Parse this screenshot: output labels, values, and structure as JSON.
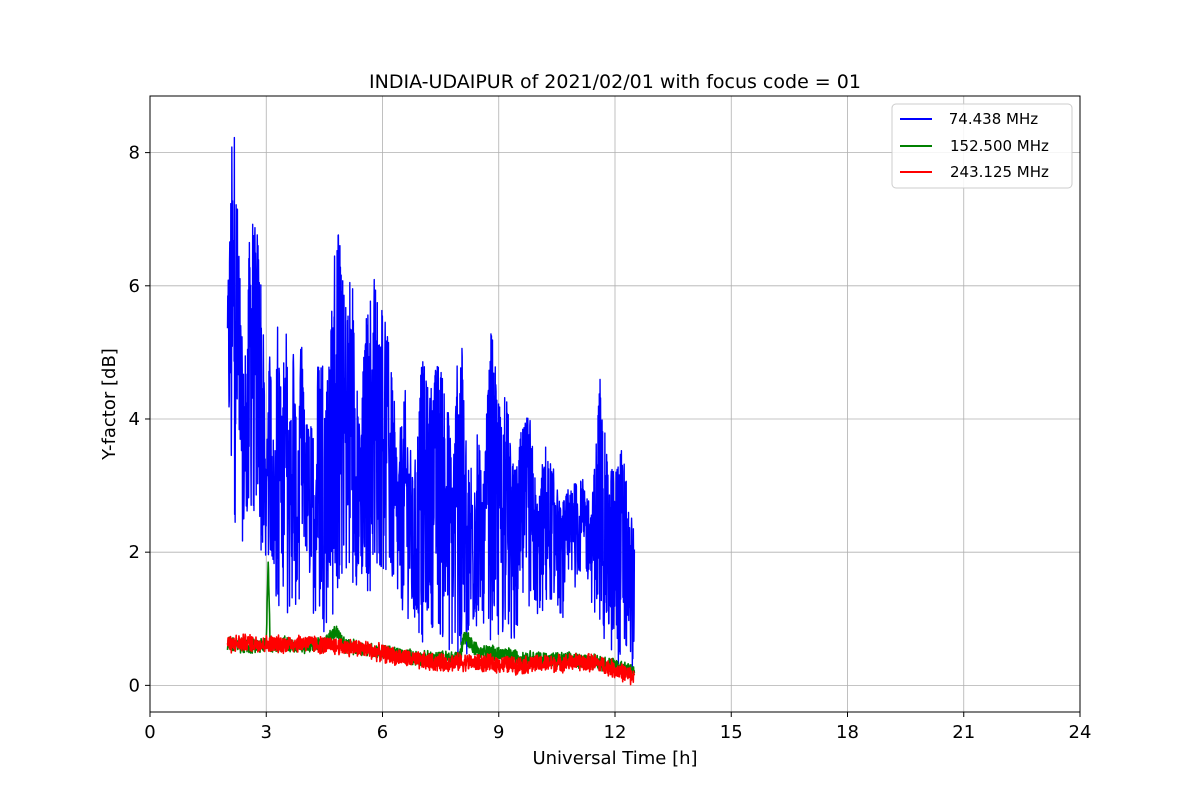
{
  "chart_data": {
    "type": "line",
    "title": "INDIA-UDAIPUR of 2021/02/01 with focus code = 01",
    "xlabel": "Universal Time [h]",
    "ylabel": "Y-factor [dB]",
    "xlim": [
      0,
      24
    ],
    "ylim": [
      -0.4,
      8.85
    ],
    "xticks": [
      0,
      3,
      6,
      9,
      12,
      15,
      18,
      21,
      24
    ],
    "yticks": [
      0,
      2,
      4,
      6,
      8
    ],
    "grid": true,
    "legend_position": "top-right",
    "series": [
      {
        "name": " 74.438 MHz",
        "color": "#0000ff",
        "x": [
          2.0,
          2.1,
          2.2,
          2.3,
          2.4,
          2.5,
          2.6,
          2.7,
          2.8,
          2.9,
          3.0,
          3.1,
          3.2,
          3.3,
          3.4,
          3.5,
          3.6,
          3.7,
          3.8,
          3.9,
          4.0,
          4.2,
          4.4,
          4.6,
          4.8,
          5.0,
          5.2,
          5.4,
          5.6,
          5.8,
          6.0,
          6.2,
          6.4,
          6.6,
          6.8,
          7.0,
          7.2,
          7.4,
          7.6,
          7.8,
          8.0,
          8.2,
          8.4,
          8.6,
          8.8,
          9.0,
          9.2,
          9.4,
          9.6,
          9.8,
          10.0,
          10.2,
          10.4,
          10.6,
          10.8,
          11.0,
          11.2,
          11.4,
          11.6,
          11.8,
          12.0,
          12.2,
          12.4,
          12.5
        ],
        "y": [
          5.9,
          8.2,
          8.4,
          6.5,
          4.8,
          5.4,
          7.5,
          6.9,
          7.0,
          6.0,
          3.2,
          5.4,
          3.5,
          5.7,
          4.2,
          5.7,
          4.0,
          5.6,
          3.2,
          5.4,
          4.1,
          3.9,
          5.5,
          4.6,
          7.4,
          5.9,
          6.4,
          4.0,
          5.8,
          6.2,
          5.8,
          5.0,
          3.6,
          4.5,
          3.0,
          5.0,
          4.5,
          4.9,
          4.8,
          3.7,
          5.8,
          3.1,
          4.3,
          3.0,
          5.5,
          4.2,
          4.4,
          3.2,
          3.9,
          4.1,
          2.8,
          3.7,
          3.3,
          2.7,
          3.0,
          3.1,
          3.1,
          2.7,
          4.7,
          3.4,
          3.3,
          3.7,
          2.3,
          3.1
        ],
        "y_min_envelope": [
          4.2,
          2.2,
          2.4,
          3.1,
          2.0,
          2.2,
          2.5,
          2.4,
          2.3,
          1.5,
          1.9,
          1.8,
          1.5,
          0.8,
          1.6,
          1.2,
          0.9,
          1.3,
          1.0,
          1.5,
          1.9,
          1.1,
          0.8,
          0.8,
          1.0,
          1.5,
          1.3,
          1.6,
          1.2,
          1.6,
          1.7,
          1.4,
          1.0,
          1.1,
          0.7,
          0.5,
          0.9,
          0.8,
          0.5,
          0.4,
          0.0,
          0.4,
          0.7,
          0.9,
          0.6,
          0.6,
          0.7,
          0.4,
          0.9,
          1.1,
          1.0,
          1.0,
          1.3,
          1.0,
          1.0,
          1.5,
          1.8,
          1.2,
          0.8,
          0.5,
          0.3,
          0.3,
          0.4,
          0.1
        ]
      },
      {
        "name": "152.500 MHz",
        "color": "#008000",
        "x": [
          2.0,
          2.5,
          3.0,
          3.05,
          3.1,
          3.5,
          4.0,
          4.5,
          4.8,
          5.0,
          5.5,
          6.0,
          6.5,
          7.0,
          7.5,
          8.0,
          8.1,
          8.5,
          9.0,
          9.5,
          10.0,
          10.5,
          11.0,
          11.5,
          12.0,
          12.5
        ],
        "y": [
          0.62,
          0.58,
          0.6,
          1.85,
          0.6,
          0.62,
          0.6,
          0.62,
          0.82,
          0.6,
          0.55,
          0.5,
          0.45,
          0.4,
          0.4,
          0.42,
          0.75,
          0.5,
          0.48,
          0.42,
          0.4,
          0.38,
          0.38,
          0.36,
          0.3,
          0.22
        ],
        "spread": 0.13
      },
      {
        "name": "243.125 MHz",
        "color": "#ff0000",
        "x": [
          2.0,
          2.5,
          3.0,
          3.5,
          4.0,
          4.5,
          5.0,
          5.5,
          6.0,
          6.5,
          7.0,
          7.5,
          8.0,
          8.5,
          9.0,
          9.5,
          10.0,
          10.5,
          11.0,
          11.5,
          12.0,
          12.5
        ],
        "y": [
          0.62,
          0.64,
          0.62,
          0.62,
          0.64,
          0.6,
          0.58,
          0.55,
          0.48,
          0.42,
          0.36,
          0.34,
          0.35,
          0.34,
          0.32,
          0.3,
          0.32,
          0.33,
          0.35,
          0.34,
          0.24,
          0.12
        ],
        "spread": 0.15
      }
    ]
  }
}
